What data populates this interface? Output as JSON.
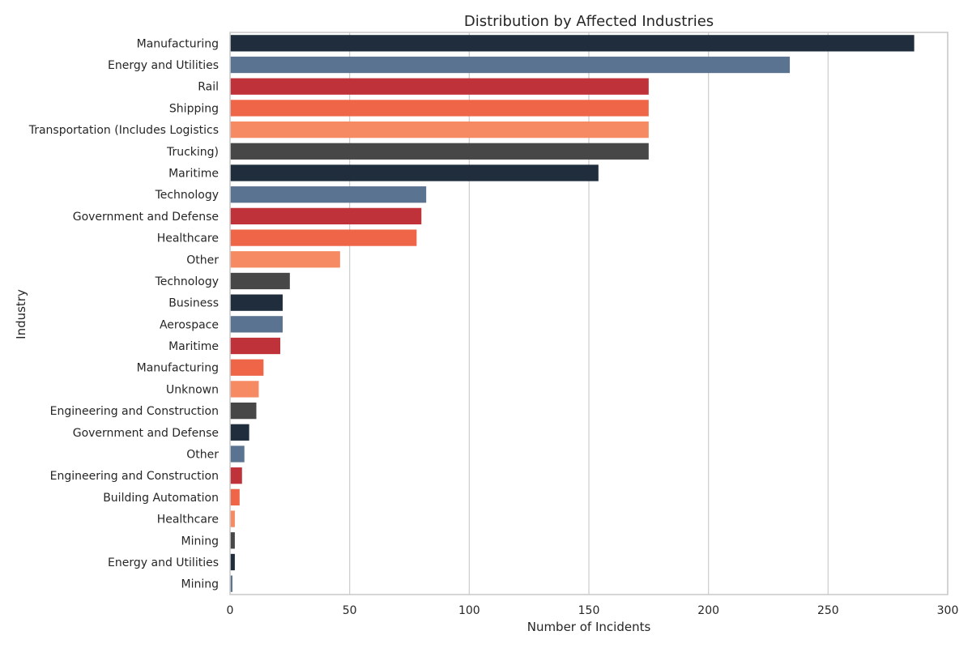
{
  "chart_data": {
    "type": "bar",
    "orientation": "horizontal",
    "title": "Distribution by Affected Industries",
    "xlabel": "Number of Incidents",
    "ylabel": "Industry",
    "xlim": [
      0,
      300
    ],
    "xticks": [
      0,
      50,
      100,
      150,
      200,
      250,
      300
    ],
    "grid": "vertical",
    "palette": [
      "#1f2d3d",
      "#5a7391",
      "#c0323a",
      "#ef6548",
      "#f68a63",
      "#474747"
    ],
    "categories": [
      "Manufacturing",
      "Energy and Utilities",
      "Rail",
      "Shipping",
      "Transportation (Includes Logistics",
      "Trucking)",
      "Maritime",
      "Technology",
      "Government and Defense",
      "Healthcare",
      "Other",
      "Technology",
      "Business",
      "Aerospace",
      "Maritime",
      "Manufacturing",
      "Unknown",
      "Engineering and Construction",
      "Government and Defense",
      "Other",
      "Engineering and Construction",
      "Building Automation",
      "Healthcare",
      "Mining",
      "Energy and Utilities",
      "Mining"
    ],
    "values": [
      286,
      234,
      175,
      175,
      175,
      175,
      154,
      82,
      80,
      78,
      46,
      25,
      22,
      22,
      21,
      14,
      12,
      11,
      8,
      6,
      5,
      4,
      2,
      2,
      2,
      1
    ]
  }
}
